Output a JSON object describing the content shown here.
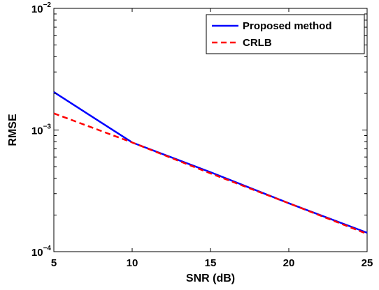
{
  "chart_data": {
    "type": "line",
    "title": "",
    "xlabel": "SNR (dB)",
    "ylabel": "RMSE",
    "x_scale": "linear",
    "y_scale": "log",
    "xlim": [
      5,
      25
    ],
    "ylim": [
      0.0001,
      0.01
    ],
    "x_ticks": [
      5,
      10,
      15,
      20,
      25
    ],
    "x_tick_labels": [
      "5",
      "10",
      "15",
      "20",
      "25"
    ],
    "y_ticks": [
      0.0001,
      0.001,
      0.01
    ],
    "y_tick_labels": [
      {
        "base": "10",
        "exp": "−4"
      },
      {
        "base": "10",
        "exp": "−3"
      },
      {
        "base": "10",
        "exp": "−2"
      }
    ],
    "grid": false,
    "legend_position": "top-right",
    "series": [
      {
        "name": "Proposed method",
        "color": "#0000ff",
        "style": "solid",
        "x": [
          5,
          10,
          15,
          20,
          25
        ],
        "y": [
          0.00205,
          0.00079,
          0.00045,
          0.00025,
          0.000143
        ]
      },
      {
        "name": "CRLB",
        "color": "#ff0000",
        "style": "dashed",
        "x": [
          5,
          10,
          15,
          20,
          25
        ],
        "y": [
          0.00137,
          0.00079,
          0.00044,
          0.00025,
          0.00014
        ]
      }
    ]
  }
}
